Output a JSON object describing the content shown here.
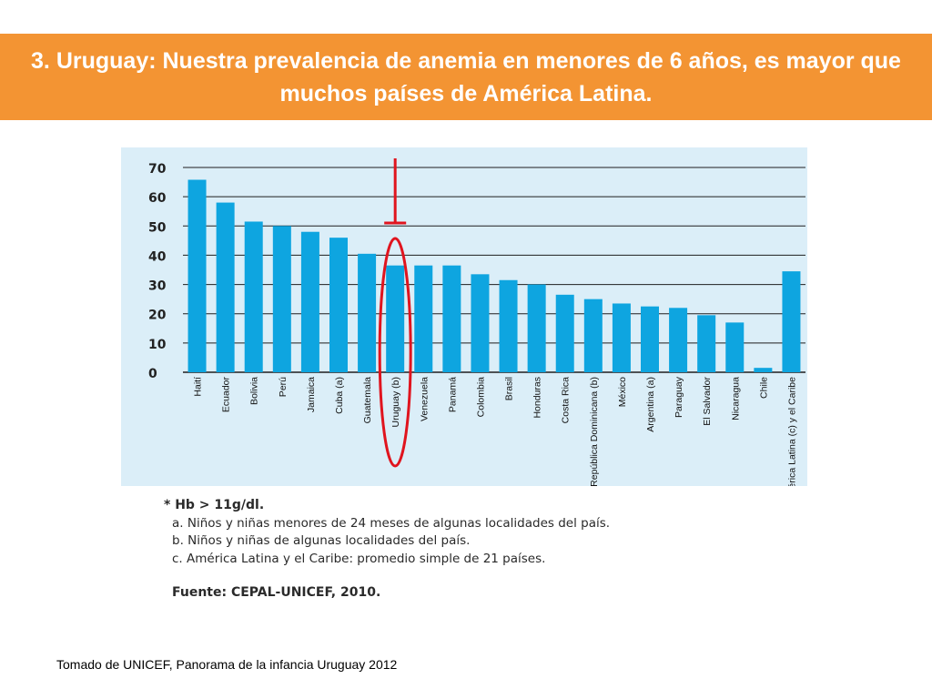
{
  "slide": {
    "title": "3. Uruguay:  Nuestra prevalencia de anemia en menores de 6 años, es mayor que muchos países de América Latina.",
    "footer": "Tomado de UNICEF, Panorama de la infancia Uruguay 2012",
    "colors": {
      "banner": "#f39433",
      "bars": "#0ea5e0",
      "panel": "#dbeef8",
      "highlight": "#e0141e"
    },
    "highlight_category": "Uruguay (b)"
  },
  "notes": {
    "hb": "* Hb > 11g/dl.",
    "a": "a. Niños y niñas menores de 24 meses de algunas localidades del país.",
    "b": "b. Niños y niñas de algunas localidades del país.",
    "c": "c. América Latina y el Caribe: promedio simple de 21 países.",
    "source": "Fuente: CEPAL-UNICEF, 2010."
  },
  "chart_data": {
    "type": "bar",
    "categories": [
      "Haití",
      "Ecuador",
      "Bolivia",
      "Perú",
      "Jamaica",
      "Cuba (a)",
      "Guatemala",
      "Uruguay (b)",
      "Venezuela",
      "Panamá",
      "Colombia",
      "Brasil",
      "Honduras",
      "Costa Rica",
      "República Dominicana (b)",
      "México",
      "Argentina (a)",
      "Paraguay",
      "El Salvador",
      "Nicaragua",
      "Chile",
      "América Latina (c) y el Caribe"
    ],
    "values": [
      65.8,
      58.0,
      51.5,
      50.0,
      48.0,
      46.0,
      40.5,
      36.5,
      36.5,
      36.5,
      33.5,
      31.5,
      30.0,
      26.5,
      25.0,
      23.5,
      22.5,
      22.0,
      19.5,
      17.0,
      1.5,
      34.5
    ],
    "yticks": [
      0,
      10,
      20,
      30,
      40,
      50,
      60,
      70
    ],
    "ylim": [
      0,
      70
    ],
    "grid": true
  }
}
